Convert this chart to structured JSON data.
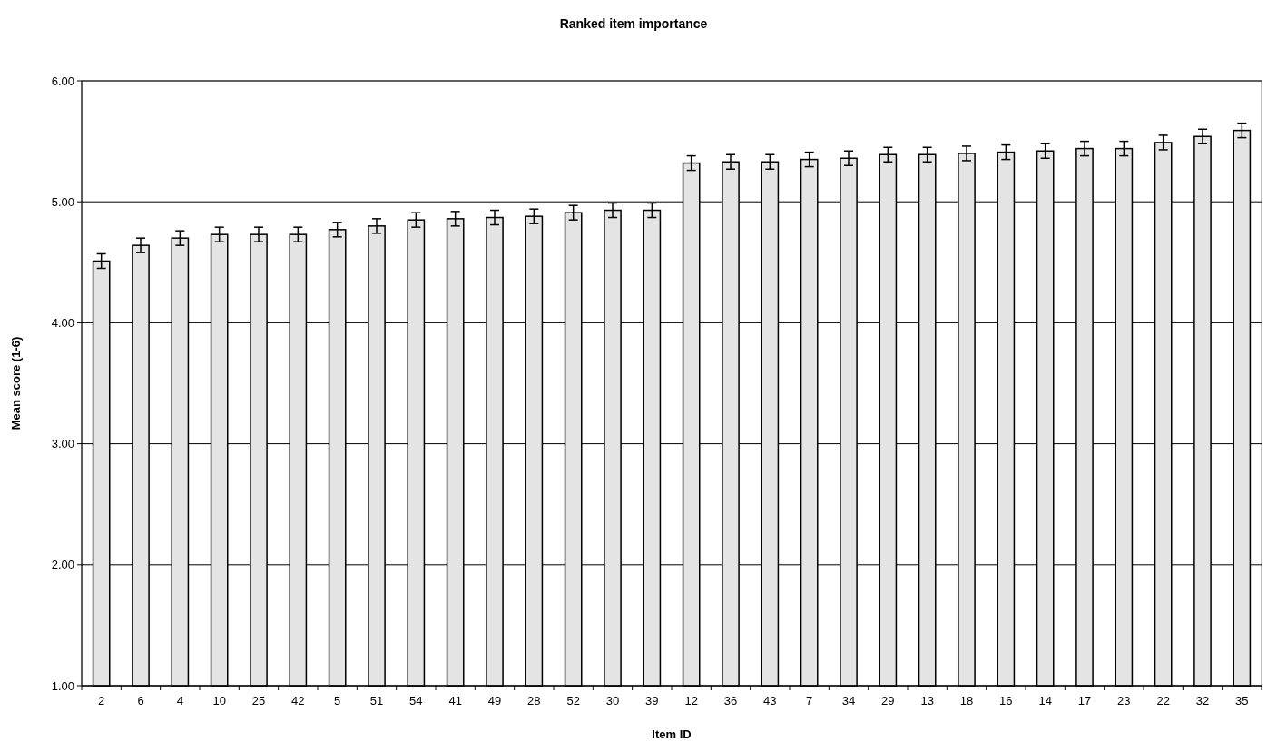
{
  "chart_data": {
    "type": "bar",
    "title": "Ranked item importance",
    "xlabel": "Item ID",
    "ylabel": "Mean score (1-6)",
    "categories": [
      "2",
      "6",
      "4",
      "10",
      "25",
      "42",
      "5",
      "51",
      "54",
      "41",
      "49",
      "28",
      "52",
      "30",
      "39",
      "12",
      "36",
      "43",
      "7",
      "34",
      "29",
      "13",
      "18",
      "16",
      "14",
      "17",
      "23",
      "22",
      "32",
      "35"
    ],
    "values": [
      4.51,
      4.64,
      4.7,
      4.73,
      4.73,
      4.73,
      4.77,
      4.8,
      4.85,
      4.86,
      4.87,
      4.88,
      4.91,
      4.93,
      4.93,
      5.32,
      5.33,
      5.33,
      5.35,
      5.36,
      5.39,
      5.39,
      5.4,
      5.41,
      5.42,
      5.44,
      5.44,
      5.49,
      5.54,
      5.59
    ],
    "errors": [
      0.06,
      0.06,
      0.06,
      0.06,
      0.06,
      0.06,
      0.06,
      0.06,
      0.06,
      0.06,
      0.06,
      0.06,
      0.06,
      0.06,
      0.06,
      0.06,
      0.06,
      0.06,
      0.06,
      0.06,
      0.06,
      0.06,
      0.06,
      0.06,
      0.06,
      0.06,
      0.06,
      0.06,
      0.06,
      0.06
    ],
    "color": "#e4e4e4",
    "ylim": [
      1,
      6
    ],
    "yticks": [
      {
        "value": 1,
        "label": "1.00"
      },
      {
        "value": 2,
        "label": "2.00"
      },
      {
        "value": 3,
        "label": "3.00"
      },
      {
        "value": 4,
        "label": "4.00"
      },
      {
        "value": 5,
        "label": "5.00"
      },
      {
        "value": 6,
        "label": "6.00"
      }
    ],
    "grid": "y"
  }
}
